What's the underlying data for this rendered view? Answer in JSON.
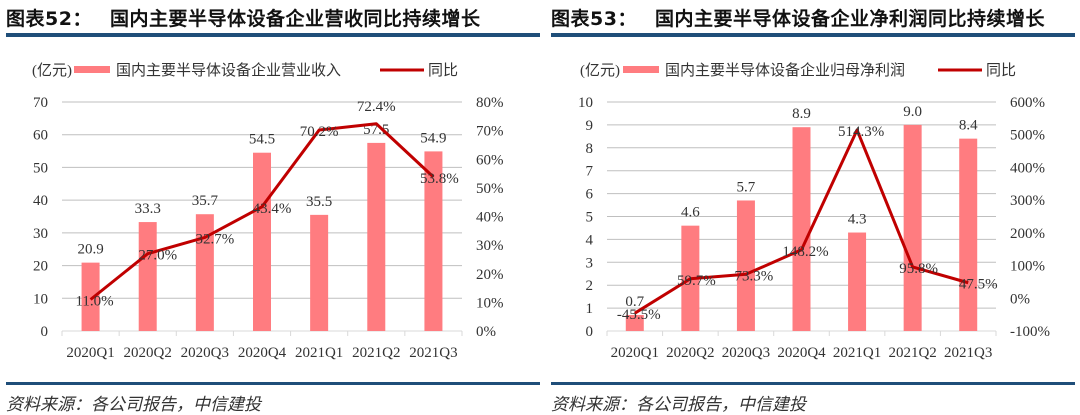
{
  "left": {
    "figure_number": "图表52：",
    "title": "国内主要半导体设备企业营收同比持续增长",
    "unit_label": "(亿元)",
    "legend": {
      "bar": "国内主要半导体设备企业营业收入",
      "line": "同比"
    },
    "source": "资料来源：各公司报告，中信建投"
  },
  "right": {
    "figure_number": "图表53：",
    "title": "国内主要半导体设备企业净利润同比持续增长",
    "unit_label": "(亿元)",
    "legend": {
      "bar": "国内主要半导体设备企业归母净利润",
      "line": "同比"
    },
    "source": "资料来源：各公司报告，中信建投"
  },
  "colors": {
    "bar": "#ff7c80",
    "line": "#c00000",
    "rule": "#1f4e79",
    "grid": "#bfbfbf"
  },
  "chart_data": [
    {
      "type": "bar+line",
      "title": "国内主要半导体设备企业营收同比持续增长",
      "categories": [
        "2020Q1",
        "2020Q2",
        "2020Q3",
        "2020Q4",
        "2021Q1",
        "2021Q2",
        "2021Q3"
      ],
      "series": [
        {
          "name": "国内主要半导体设备企业营业收入",
          "type": "bar",
          "axis": "left",
          "values": [
            20.9,
            33.3,
            35.7,
            54.5,
            35.5,
            57.5,
            54.9
          ],
          "labels": [
            "20.9",
            "33.3",
            "35.7",
            "54.5",
            "35.5",
            "57.5",
            "54.9"
          ]
        },
        {
          "name": "同比",
          "type": "line",
          "axis": "right",
          "values": [
            11.0,
            27.0,
            32.7,
            43.4,
            70.2,
            72.4,
            53.8
          ],
          "labels": [
            "11.0%",
            "27.0%",
            "32.7%",
            "43.4%",
            "70.2%",
            "72.4%",
            "53.8%"
          ]
        }
      ],
      "ylabel": "(亿元)",
      "ylim": [
        0,
        70
      ],
      "yticks": [
        "0",
        "10",
        "20",
        "30",
        "40",
        "50",
        "60",
        "70"
      ],
      "y2lim": [
        0,
        80
      ],
      "y2ticks": [
        "0%",
        "10%",
        "20%",
        "30%",
        "40%",
        "50%",
        "60%",
        "70%",
        "80%"
      ],
      "grid": true,
      "legend_position": "top"
    },
    {
      "type": "bar+line",
      "title": "国内主要半导体设备企业净利润同比持续增长",
      "categories": [
        "2020Q1",
        "2020Q2",
        "2020Q3",
        "2020Q4",
        "2021Q1",
        "2021Q2",
        "2021Q3"
      ],
      "series": [
        {
          "name": "国内主要半导体设备企业归母净利润",
          "type": "bar",
          "axis": "left",
          "values": [
            0.7,
            4.6,
            5.7,
            8.9,
            4.3,
            9.0,
            8.4
          ],
          "labels": [
            "0.7",
            "4.6",
            "5.7",
            "8.9",
            "4.3",
            "9.0",
            "8.4"
          ]
        },
        {
          "name": "同比",
          "type": "line",
          "axis": "right",
          "values": [
            -45.5,
            59.7,
            73.3,
            148.2,
            514.3,
            95.8,
            47.5
          ],
          "labels": [
            "-45.5%",
            "59.7%",
            "73.3%",
            "148.2%",
            "514.3%",
            "95.8%",
            "47.5%"
          ]
        }
      ],
      "ylabel": "(亿元)",
      "ylim": [
        0,
        10
      ],
      "yticks": [
        "0",
        "1",
        "2",
        "3",
        "4",
        "5",
        "6",
        "7",
        "8",
        "9",
        "10"
      ],
      "y2lim": [
        -100,
        600
      ],
      "y2ticks": [
        "-100%",
        "0%",
        "100%",
        "200%",
        "300%",
        "400%",
        "500%",
        "600%"
      ],
      "grid": true,
      "legend_position": "top"
    }
  ]
}
